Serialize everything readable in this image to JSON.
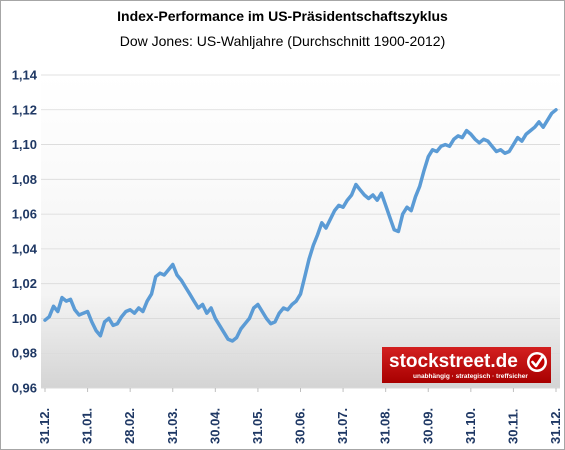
{
  "chart_data": {
    "type": "line",
    "title": "Index-Performance im US-Präsidentschaftszyklus",
    "subtitle": "Dow Jones: US-Wahljahre (Durchschnitt 1900-2012)",
    "xlabel": "",
    "ylabel": "",
    "ylim": [
      0.96,
      1.14
    ],
    "y_ticks": [
      "0,96",
      "0,98",
      "1,00",
      "1,02",
      "1,04",
      "1,06",
      "1,08",
      "1,10",
      "1,12",
      "1,14"
    ],
    "x_ticks": [
      "31.12.",
      "31.01.",
      "28.02.",
      "31.03.",
      "30.04.",
      "31.05.",
      "30.06.",
      "31.07.",
      "31.08.",
      "30.09.",
      "31.10.",
      "30.11.",
      "31.12."
    ],
    "grid": "horizontal",
    "colors": {
      "line": "#5b9bd5",
      "gridline": "#d9d9d9",
      "tick_text": "#1f3864",
      "logo_bg": "#c00000"
    },
    "series": [
      {
        "x": [
          0,
          0.1,
          0.2,
          0.3,
          0.4,
          0.5,
          0.6,
          0.7,
          0.8,
          0.9,
          1.0,
          1.1,
          1.2,
          1.3,
          1.4,
          1.5,
          1.6,
          1.7,
          1.8,
          1.9,
          2.0,
          2.1,
          2.2,
          2.3,
          2.4,
          2.5,
          2.6,
          2.7,
          2.8,
          2.9,
          3.0,
          3.1,
          3.2,
          3.3,
          3.4,
          3.5,
          3.6,
          3.7,
          3.8,
          3.9,
          4.0,
          4.1,
          4.2,
          4.3,
          4.4,
          4.5,
          4.6,
          4.7,
          4.8,
          4.9,
          5.0,
          5.1,
          5.2,
          5.3,
          5.4,
          5.5,
          5.6,
          5.7,
          5.8,
          5.9,
          6.0,
          6.1,
          6.2,
          6.3,
          6.4,
          6.5,
          6.6,
          6.7,
          6.8,
          6.9,
          7.0,
          7.1,
          7.2,
          7.3,
          7.4,
          7.5,
          7.6,
          7.7,
          7.8,
          7.9,
          8.0,
          8.1,
          8.2,
          8.3,
          8.4,
          8.5,
          8.6,
          8.7,
          8.8,
          8.9,
          9.0,
          9.1,
          9.2,
          9.3,
          9.4,
          9.5,
          9.6,
          9.7,
          9.8,
          9.9,
          10.0,
          10.1,
          10.2,
          10.3,
          10.4,
          10.5,
          10.6,
          10.7,
          10.8,
          10.9,
          11.0,
          11.1,
          11.2,
          11.3,
          11.4,
          11.5,
          11.6,
          11.7,
          11.8,
          11.9,
          12.0
        ],
        "values": [
          0.999,
          1.001,
          1.007,
          1.004,
          1.012,
          1.01,
          1.011,
          1.005,
          1.002,
          1.003,
          1.004,
          0.998,
          0.993,
          0.99,
          0.998,
          1.0,
          0.996,
          0.997,
          1.001,
          1.004,
          1.005,
          1.003,
          1.006,
          1.004,
          1.01,
          1.014,
          1.024,
          1.026,
          1.025,
          1.028,
          1.031,
          1.025,
          1.022,
          1.018,
          1.014,
          1.01,
          1.006,
          1.008,
          1.003,
          1.006,
          1.0,
          0.996,
          0.992,
          0.988,
          0.987,
          0.989,
          0.994,
          0.997,
          1.0,
          1.006,
          1.008,
          1.004,
          1.0,
          0.997,
          0.998,
          1.003,
          1.006,
          1.005,
          1.008,
          1.01,
          1.014,
          1.024,
          1.034,
          1.042,
          1.048,
          1.055,
          1.052,
          1.057,
          1.062,
          1.065,
          1.064,
          1.068,
          1.071,
          1.077,
          1.074,
          1.071,
          1.069,
          1.071,
          1.068,
          1.072,
          1.065,
          1.058,
          1.051,
          1.05,
          1.06,
          1.064,
          1.062,
          1.07,
          1.076,
          1.085,
          1.093,
          1.097,
          1.096,
          1.099,
          1.1,
          1.099,
          1.103,
          1.105,
          1.104,
          1.108,
          1.106,
          1.103,
          1.101,
          1.103,
          1.102,
          1.099,
          1.096,
          1.097,
          1.095,
          1.096,
          1.1,
          1.104,
          1.102,
          1.106,
          1.108,
          1.11,
          1.113,
          1.11,
          1.114,
          1.118,
          1.12
        ]
      }
    ]
  },
  "logo": {
    "name": "stockstreet.de",
    "tagline": "unabhängig · strategisch · treffsicher"
  }
}
